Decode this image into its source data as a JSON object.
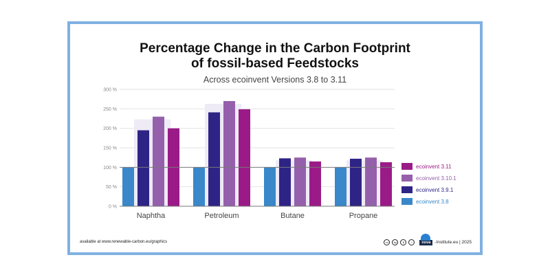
{
  "header": {
    "title_line1": "Percentage Change in the Carbon Footprint",
    "title_line2": "of fossil-based Feedstocks",
    "subtitle": "Across ecoinvent  Versions 3.8 to 3.11"
  },
  "footer": {
    "source": "available at www.renewable-carbon.eu/graphics",
    "license_icons": [
      "cc",
      "by",
      "nc",
      "nd"
    ],
    "logo_text": "nova",
    "credit": "-Institute.eu | 2025"
  },
  "chart_data": {
    "type": "bar",
    "title": "Percentage Change in the Carbon Footprint of fossil-based Feedstocks",
    "subtitle": "Across ecoinvent  Versions 3.8 to 3.11",
    "xlabel": "",
    "ylabel": "",
    "categories": [
      "Naphtha",
      "Petroleum",
      "Butane",
      "Propane"
    ],
    "ylim": [
      0,
      300
    ],
    "yticks": [
      0,
      50,
      100,
      150,
      200,
      250,
      300
    ],
    "ytick_labels": [
      "0 %",
      "50 %",
      "100 %",
      "150 %",
      "200 %",
      "250 %",
      "300 %"
    ],
    "grid": true,
    "reference_line": 100,
    "legend_position": "right",
    "series": [
      {
        "name": "ecoinvent 3.8",
        "color": "#3a87c9",
        "values": [
          100,
          100,
          100,
          100
        ]
      },
      {
        "name": "ecoinvent 3.9.1",
        "color": "#2e2486",
        "values": [
          195,
          241,
          123,
          122
        ]
      },
      {
        "name": "ecoinvent 3.10.1",
        "color": "#9560ab",
        "values": [
          230,
          270,
          125,
          125
        ]
      },
      {
        "name": "ecoinvent 3.11",
        "color": "#9a1b87",
        "values": [
          200,
          249,
          115,
          113
        ]
      }
    ],
    "legend_order": [
      3,
      2,
      1,
      0
    ]
  }
}
